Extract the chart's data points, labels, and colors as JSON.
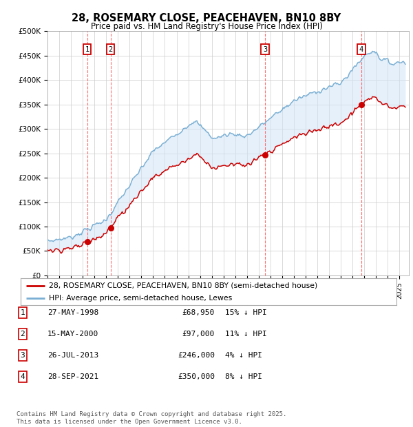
{
  "title": "28, ROSEMARY CLOSE, PEACEHAVEN, BN10 8BY",
  "subtitle": "Price paid vs. HM Land Registry's House Price Index (HPI)",
  "ylim": [
    0,
    500000
  ],
  "yticks": [
    0,
    50000,
    100000,
    150000,
    200000,
    250000,
    300000,
    350000,
    400000,
    450000,
    500000
  ],
  "ytick_labels": [
    "£0",
    "£50K",
    "£100K",
    "£150K",
    "£200K",
    "£250K",
    "£300K",
    "£350K",
    "£400K",
    "£450K",
    "£500K"
  ],
  "xlim_start": 1995.0,
  "xlim_end": 2025.8,
  "background_color": "#ffffff",
  "plot_bg_color": "#ffffff",
  "grid_color": "#cccccc",
  "shade_color": "#d0e4f7",
  "purchases": [
    {
      "label": "1",
      "date_num": 1998.38,
      "price": 68950
    },
    {
      "label": "2",
      "date_num": 2000.37,
      "price": 97000
    },
    {
      "label": "3",
      "date_num": 2013.55,
      "price": 246000
    },
    {
      "label": "4",
      "date_num": 2021.74,
      "price": 350000
    }
  ],
  "legend_line1": "28, ROSEMARY CLOSE, PEACEHAVEN, BN10 8BY (semi-detached house)",
  "legend_line2": "HPI: Average price, semi-detached house, Lewes",
  "table_rows": [
    {
      "num": "1",
      "date": "27-MAY-1998",
      "price": "£68,950",
      "hpi": "15% ↓ HPI"
    },
    {
      "num": "2",
      "date": "15-MAY-2000",
      "price": "£97,000",
      "hpi": "11% ↓ HPI"
    },
    {
      "num": "3",
      "date": "26-JUL-2013",
      "price": "£246,000",
      "hpi": "4% ↓ HPI"
    },
    {
      "num": "4",
      "date": "28-SEP-2021",
      "price": "£350,000",
      "hpi": "8% ↓ HPI"
    }
  ],
  "footer": "Contains HM Land Registry data © Crown copyright and database right 2025.\nThis data is licensed under the Open Government Licence v3.0.",
  "red_color": "#cc0000",
  "blue_color": "#7aafd4",
  "dashed_color": "#ff5555"
}
